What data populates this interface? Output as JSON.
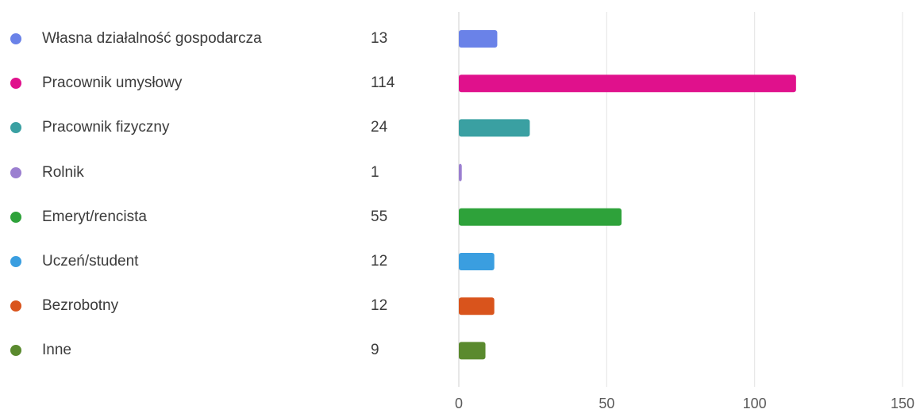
{
  "chart_data": {
    "type": "bar",
    "orientation": "horizontal",
    "categories": [
      "Własna działalność gospodarcza",
      "Pracownik umysłowy",
      "Pracownik fizyczny",
      "Rolnik",
      "Emeryt/rencista",
      "Uczeń/student",
      "Bezrobotny",
      "Inne"
    ],
    "values": [
      13,
      114,
      24,
      1,
      55,
      12,
      12,
      9
    ],
    "colors": [
      "#6a82e8",
      "#e0118c",
      "#3aa0a2",
      "#9b7fd0",
      "#2ea23a",
      "#3a9ee0",
      "#d9541c",
      "#5a8a2e"
    ],
    "xlim": [
      0,
      150
    ],
    "xticks": [
      "0",
      "50",
      "100",
      "150"
    ],
    "grid": true,
    "legend_position": "left",
    "title": "",
    "xlabel": "",
    "ylabel": ""
  }
}
